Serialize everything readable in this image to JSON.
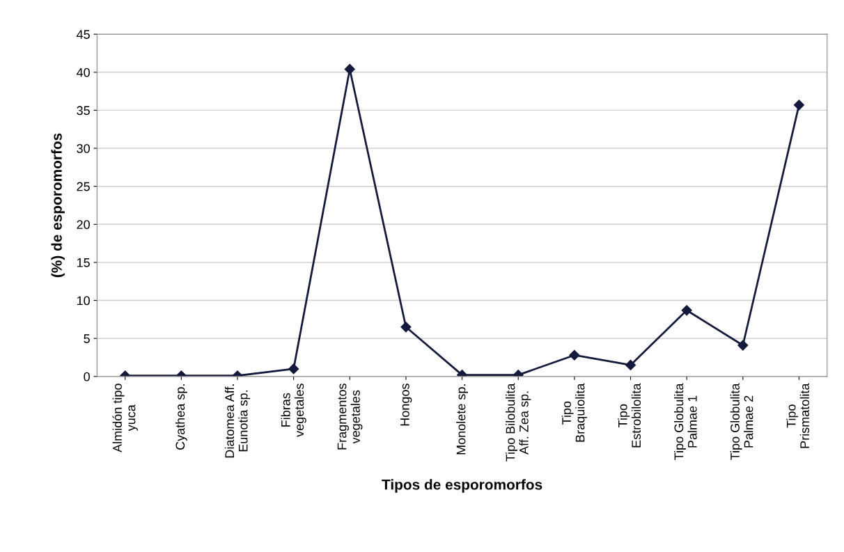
{
  "chart_data": {
    "type": "line",
    "xlabel": "Tipos de esporomorfos",
    "ylabel": "(%) de esporomorfos",
    "categories": [
      "Almidón tipo\nyuca",
      "Cyathea sp.",
      "Diatomea Aff.\nEunotia sp.",
      "Fibras\nvegetales",
      "Fragmentos\nvegetales",
      "Hongos",
      "Monolete sp.",
      "Tipo Bilobulita\nAff. Zea sp.",
      "Tipo\nBraquiolita",
      "Tipo\nEstrobilolita",
      "Tipo Globulita\nPalmae 1",
      "Tipo Globulita\nPalmae 2",
      "Tipo\nPrismatolita"
    ],
    "series": [
      {
        "color": "#141a3c",
        "values": [
          0.1,
          0.1,
          0.1,
          1.0,
          40.4,
          6.5,
          0.2,
          0.2,
          2.8,
          1.5,
          8.7,
          4.1,
          35.7
        ]
      }
    ],
    "ylim": [
      0,
      45
    ],
    "yticks": [
      0,
      5,
      10,
      15,
      20,
      25,
      30,
      35,
      40,
      45
    ],
    "grid": "y",
    "marker": "diamond",
    "line_style": "solid",
    "legend": false
  }
}
